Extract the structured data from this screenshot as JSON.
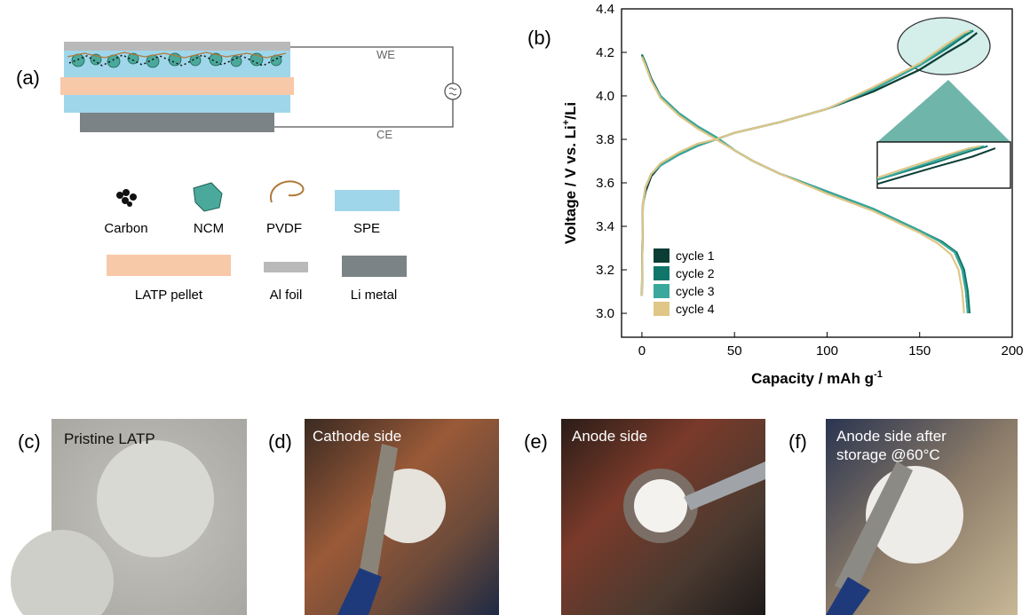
{
  "panel_labels": [
    "(a)",
    "(b)",
    "(c)",
    "(d)",
    "(e)",
    "(f)"
  ],
  "diagram": {
    "electrode_labels": [
      "WE",
      "CE"
    ],
    "legend": [
      "Carbon",
      "NCM",
      "PVDF",
      "SPE",
      "LATP pellet",
      "Al foil",
      "Li metal"
    ]
  },
  "chart_data": {
    "type": "line",
    "x_label": {
      "text": "Capacity / mAh g",
      "sup": "-1"
    },
    "y_label": {
      "text": "Voltage / V vs. Li",
      "sup": "+",
      "suffix": "/Li"
    },
    "xlim": [
      -11,
      200
    ],
    "ylim": [
      2.89,
      4.4
    ],
    "xticks": [
      0,
      50,
      100,
      150,
      200
    ],
    "yticks": [
      {
        "value": 3.0,
        "label": "3.0"
      },
      3.2,
      3.4,
      3.6,
      3.8,
      {
        "value": 4.0,
        "label": "4.0"
      },
      4.2,
      4.4
    ],
    "legend_position": "lower left",
    "series": [
      {
        "name": "cycle 1",
        "color": "#0b3d35",
        "x": [
          0,
          2,
          5,
          10,
          20,
          30,
          40,
          50,
          60,
          75,
          100,
          125,
          150,
          161,
          169,
          173,
          175,
          176,
          null,
          0,
          0.5,
          2,
          5,
          10,
          20,
          30,
          40,
          50,
          75,
          100,
          125,
          150,
          165,
          175,
          181
        ],
        "values": [
          4.19,
          4.15,
          4.08,
          4.0,
          3.92,
          3.86,
          3.81,
          3.75,
          3.7,
          3.64,
          3.56,
          3.48,
          3.38,
          3.33,
          3.28,
          3.2,
          3.1,
          3.0,
          null,
          3.08,
          3.5,
          3.56,
          3.63,
          3.68,
          3.73,
          3.77,
          3.8,
          3.83,
          3.88,
          3.94,
          4.02,
          4.12,
          4.2,
          4.25,
          4.29
        ]
      },
      {
        "name": "cycle 2",
        "color": "#11766a",
        "x": [
          0,
          2,
          5,
          10,
          20,
          30,
          40,
          50,
          60,
          75,
          100,
          125,
          150,
          162,
          170,
          174,
          176,
          177,
          null,
          0,
          0.5,
          2,
          5,
          10,
          20,
          30,
          40,
          50,
          75,
          100,
          125,
          150,
          165,
          175,
          179
        ],
        "values": [
          4.19,
          4.15,
          4.08,
          4.0,
          3.92,
          3.86,
          3.81,
          3.75,
          3.7,
          3.64,
          3.56,
          3.48,
          3.38,
          3.33,
          3.28,
          3.2,
          3.1,
          3.0,
          null,
          3.08,
          3.5,
          3.58,
          3.64,
          3.68,
          3.73,
          3.77,
          3.8,
          3.83,
          3.88,
          3.94,
          4.03,
          4.14,
          4.22,
          4.28,
          4.3
        ]
      },
      {
        "name": "cycle 3",
        "color": "#3aa89a",
        "x": [
          0,
          2,
          5,
          10,
          20,
          30,
          40,
          50,
          60,
          75,
          100,
          125,
          150,
          161,
          169,
          173,
          175,
          176,
          null,
          0,
          0.5,
          2,
          5,
          10,
          20,
          30,
          40,
          50,
          75,
          100,
          125,
          150,
          165,
          175,
          178
        ],
        "values": [
          4.18,
          4.14,
          4.07,
          4.0,
          3.92,
          3.86,
          3.81,
          3.75,
          3.7,
          3.64,
          3.56,
          3.48,
          3.38,
          3.33,
          3.28,
          3.2,
          3.1,
          3.0,
          null,
          3.08,
          3.5,
          3.58,
          3.64,
          3.68,
          3.73,
          3.77,
          3.8,
          3.83,
          3.88,
          3.94,
          4.03,
          4.14,
          4.23,
          4.29,
          4.3
        ]
      },
      {
        "name": "cycle 4",
        "color": "#e0c687",
        "x": [
          0,
          2,
          5,
          10,
          20,
          30,
          40,
          50,
          60,
          75,
          100,
          125,
          150,
          160,
          167,
          171,
          173,
          174,
          null,
          0,
          0.5,
          2,
          5,
          10,
          20,
          30,
          40,
          50,
          75,
          100,
          125,
          150,
          165,
          174,
          177
        ],
        "values": [
          4.18,
          4.14,
          4.07,
          3.99,
          3.91,
          3.85,
          3.8,
          3.75,
          3.7,
          3.64,
          3.55,
          3.47,
          3.37,
          3.32,
          3.27,
          3.2,
          3.1,
          3.0,
          null,
          3.08,
          3.5,
          3.58,
          3.64,
          3.69,
          3.74,
          3.78,
          3.8,
          3.83,
          3.88,
          3.94,
          4.04,
          4.15,
          4.24,
          4.29,
          4.3
        ]
      }
    ]
  },
  "photo_captions": [
    "Pristine LATP",
    "Cathode side",
    "Anode side",
    [
      "Anode side after",
      "storage @60°C"
    ]
  ]
}
